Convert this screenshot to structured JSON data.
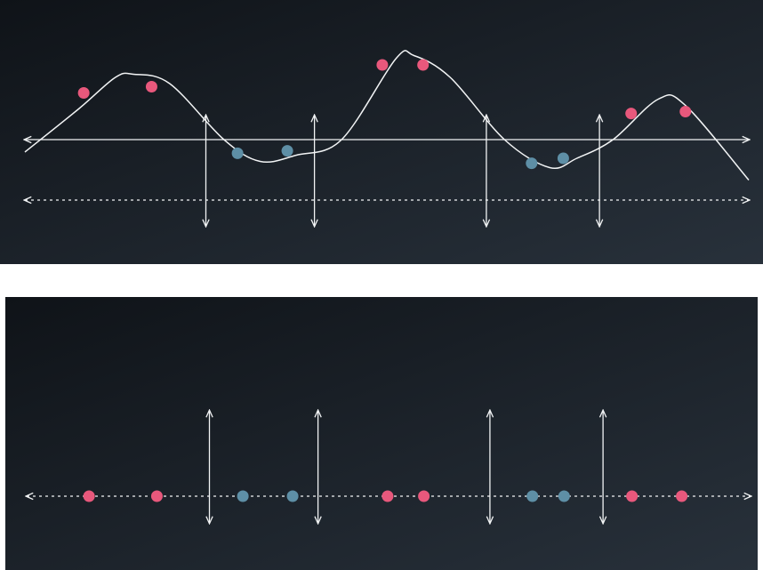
{
  "colors": {
    "background_start": "#0f1318",
    "background_end": "#28313b",
    "line": "#f2f4f5",
    "positive_point": "#e8587c",
    "negative_point": "#5e8fa6"
  },
  "top_panel": {
    "wave_points": [
      [
        0,
        -0.2
      ],
      [
        0.6,
        0.5
      ],
      [
        1.0,
        1.0
      ],
      [
        1.2,
        1.05
      ],
      [
        1.6,
        0.9
      ],
      [
        2.2,
        0.0
      ],
      [
        2.6,
        -0.35
      ],
      [
        3.0,
        -0.25
      ],
      [
        3.5,
        0.0
      ],
      [
        4.1,
        1.3
      ],
      [
        4.3,
        1.35
      ],
      [
        4.7,
        1.0
      ],
      [
        5.3,
        0.0
      ],
      [
        5.8,
        -0.45
      ],
      [
        6.1,
        -0.3
      ],
      [
        6.5,
        0.0
      ],
      [
        7.0,
        0.65
      ],
      [
        7.3,
        0.55
      ],
      [
        8.0,
        -0.65
      ]
    ],
    "zero_crossings": [
      2.0,
      3.2,
      5.1,
      6.35
    ],
    "points": [
      {
        "x": 0.65,
        "y": 0.75,
        "class": "positive"
      },
      {
        "x": 1.4,
        "y": 0.85,
        "class": "positive"
      },
      {
        "x": 2.35,
        "y": -0.22,
        "class": "negative"
      },
      {
        "x": 2.9,
        "y": -0.18,
        "class": "negative"
      },
      {
        "x": 3.95,
        "y": 1.2,
        "class": "positive"
      },
      {
        "x": 4.4,
        "y": 1.2,
        "class": "positive"
      },
      {
        "x": 5.6,
        "y": -0.38,
        "class": "negative"
      },
      {
        "x": 5.95,
        "y": -0.3,
        "class": "negative"
      },
      {
        "x": 6.7,
        "y": 0.42,
        "class": "positive"
      },
      {
        "x": 7.3,
        "y": 0.45,
        "class": "positive"
      }
    ]
  },
  "bottom_panel": {
    "boundaries": [
      2.0,
      3.2,
      5.1,
      6.35
    ],
    "points": [
      {
        "x": 0.65,
        "class": "positive"
      },
      {
        "x": 1.4,
        "class": "positive"
      },
      {
        "x": 2.35,
        "class": "negative"
      },
      {
        "x": 2.9,
        "class": "negative"
      },
      {
        "x": 3.95,
        "class": "positive"
      },
      {
        "x": 4.35,
        "class": "positive"
      },
      {
        "x": 5.55,
        "class": "negative"
      },
      {
        "x": 5.9,
        "class": "negative"
      },
      {
        "x": 6.65,
        "class": "positive"
      },
      {
        "x": 7.2,
        "class": "positive"
      }
    ]
  }
}
